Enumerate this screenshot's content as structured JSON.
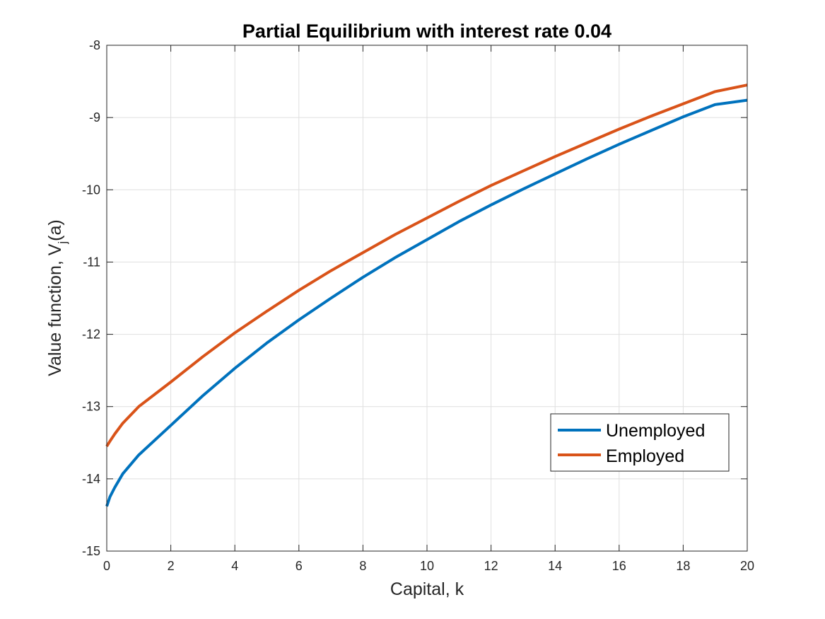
{
  "chart_data": {
    "type": "line",
    "title": "Partial Equilibrium with interest rate 0.04",
    "xlabel": "Capital, k",
    "ylabel_main": "Value function, V",
    "ylabel_sub": "j",
    "ylabel_tail": "(a)",
    "xlim": [
      0,
      20
    ],
    "ylim": [
      -15,
      -8
    ],
    "xticks": [
      0,
      2,
      4,
      6,
      8,
      10,
      12,
      14,
      16,
      18,
      20
    ],
    "yticks": [
      -15,
      -14,
      -13,
      -12,
      -11,
      -10,
      -9,
      -8
    ],
    "grid": true,
    "legend_position": "lower-right",
    "x": [
      0,
      0.1,
      0.25,
      0.5,
      1,
      2,
      3,
      4,
      5,
      6,
      7,
      8,
      9,
      10,
      11,
      12,
      13,
      14,
      15,
      16,
      17,
      18,
      19,
      20
    ],
    "series": [
      {
        "name": "Unemployed",
        "color": "#0072BD",
        "values": [
          -14.38,
          -14.25,
          -14.12,
          -13.93,
          -13.67,
          -13.26,
          -12.85,
          -12.47,
          -12.12,
          -11.8,
          -11.5,
          -11.21,
          -10.94,
          -10.69,
          -10.44,
          -10.21,
          -9.99,
          -9.78,
          -9.57,
          -9.37,
          -9.18,
          -8.99,
          -8.82,
          -8.76
        ]
      },
      {
        "name": "Employed",
        "color": "#D95319",
        "values": [
          -13.55,
          -13.48,
          -13.38,
          -13.23,
          -13.0,
          -12.66,
          -12.31,
          -11.98,
          -11.68,
          -11.39,
          -11.12,
          -10.87,
          -10.62,
          -10.39,
          -10.16,
          -9.94,
          -9.74,
          -9.54,
          -9.35,
          -9.16,
          -8.98,
          -8.81,
          -8.64,
          -8.55
        ]
      }
    ]
  }
}
